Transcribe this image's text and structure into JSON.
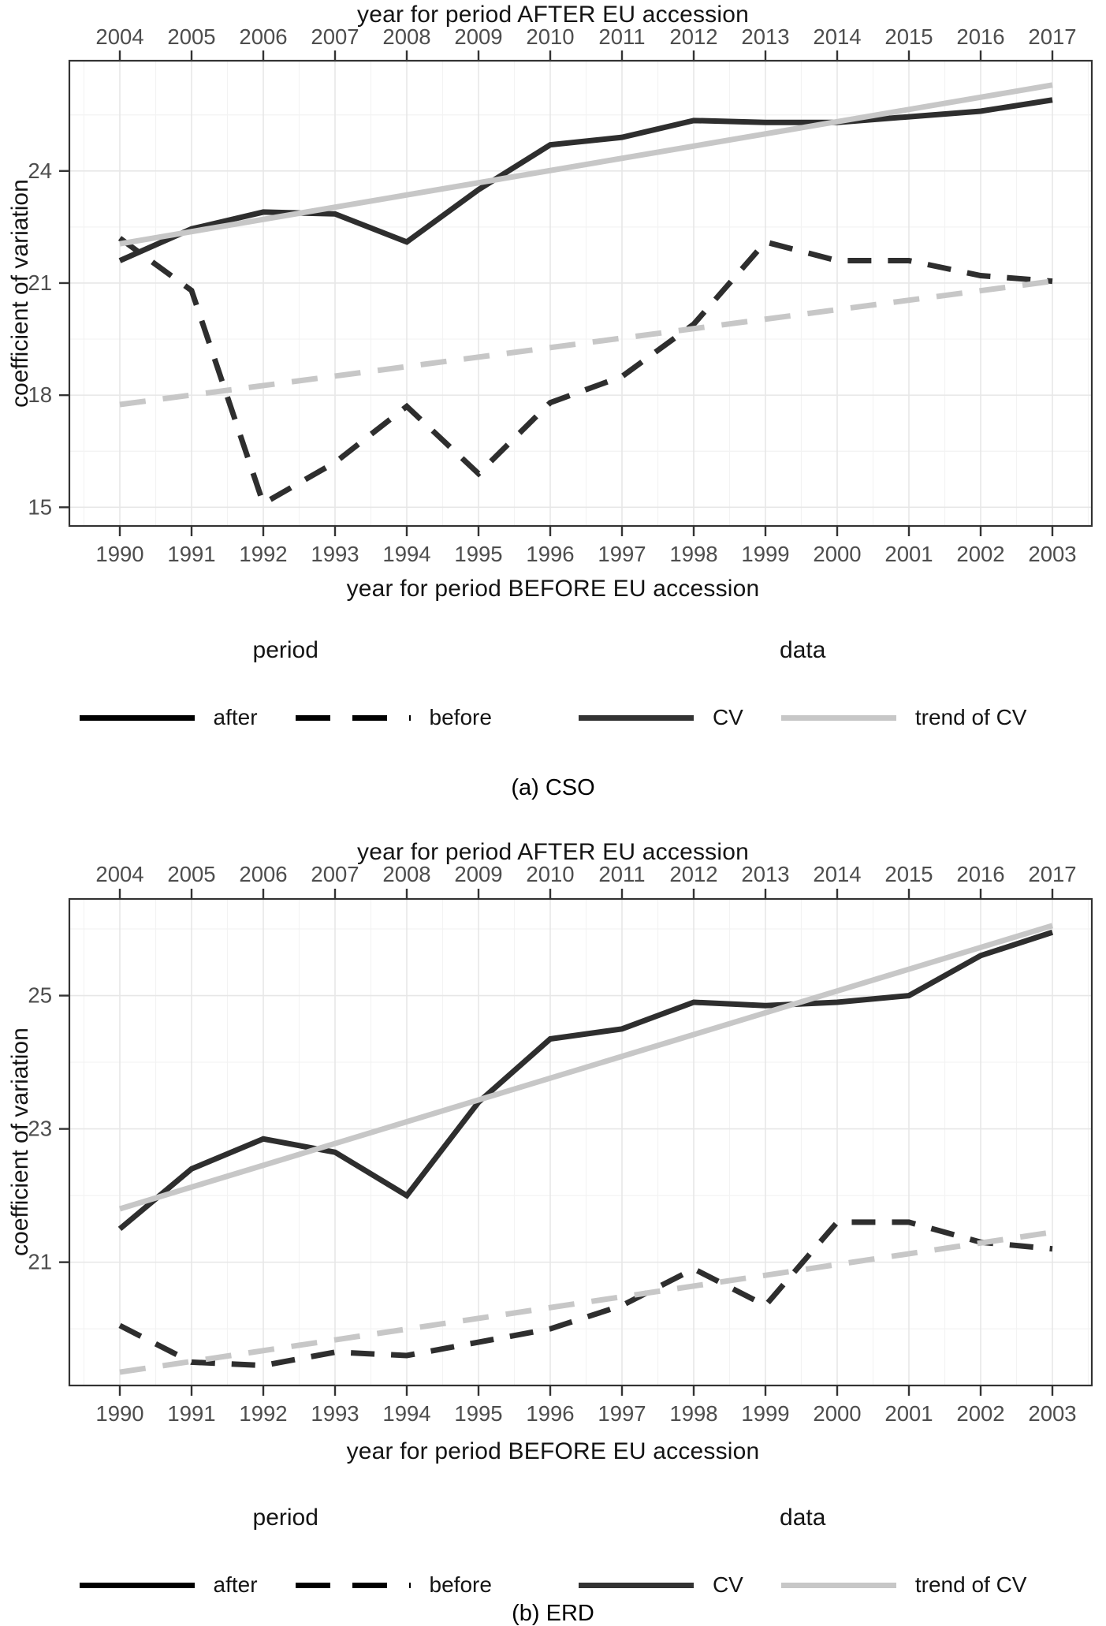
{
  "figure": {
    "type": "two-panel line chart figure",
    "description": "coefficient of variation before and after EU accession"
  },
  "colors": {
    "cv_line": "#2e2e2e",
    "trend_line": "#c7c7c7",
    "period_swatch": "#000000",
    "cv_swatch": "#333333",
    "axis_text": "#4d4d4d",
    "title_text": "#141414",
    "panel_border": "#333333",
    "grid_major": "#e7e7e7",
    "grid_minor": "#f3f3f3",
    "background": "#ffffff"
  },
  "legend": {
    "period_title": "period",
    "after_label": "after",
    "before_label": "before",
    "data_title": "data",
    "cv_label": "CV",
    "trend_label": "trend of CV"
  },
  "chart_data": [
    {
      "id": "cso",
      "type": "line",
      "caption": "(a) CSO",
      "top_axis_title": "year for period AFTER EU accession",
      "bottom_axis_title": "year for period BEFORE EU accession",
      "y_axis_title": "coefficient of variation",
      "years_after": [
        2004,
        2005,
        2006,
        2007,
        2008,
        2009,
        2010,
        2011,
        2012,
        2013,
        2014,
        2015,
        2016,
        2017
      ],
      "years_before": [
        1990,
        1991,
        1992,
        1993,
        1994,
        1995,
        1996,
        1997,
        1998,
        1999,
        2000,
        2001,
        2002,
        2003
      ],
      "y_ticks": [
        15,
        18,
        21,
        24
      ],
      "y_minor": [
        16.5,
        19.5,
        22.5,
        25.5
      ],
      "ylim": [
        14.5,
        26.95
      ],
      "series": [
        {
          "name": "CV after accession",
          "style": "solid-dark",
          "values": [
            21.6,
            22.45,
            22.9,
            22.85,
            22.1,
            23.5,
            24.7,
            24.9,
            25.35,
            25.3,
            25.3,
            25.45,
            25.6,
            25.9
          ]
        },
        {
          "name": "CV before accession",
          "style": "dashed-dark",
          "values": [
            22.2,
            20.8,
            15.1,
            16.2,
            17.7,
            15.9,
            17.8,
            18.5,
            19.9,
            22.1,
            21.6,
            21.6,
            21.2,
            21.05
          ]
        },
        {
          "name": "trend of CV after accession",
          "style": "solid-gray",
          "endpoints": [
            22.05,
            26.3
          ]
        },
        {
          "name": "trend of CV before accession",
          "style": "dashed-gray",
          "endpoints": [
            17.75,
            21.05
          ]
        }
      ]
    },
    {
      "id": "erd",
      "type": "line",
      "caption": "(b) ERD",
      "top_axis_title": "year for period AFTER EU accession",
      "bottom_axis_title": "year for period BEFORE EU accession",
      "y_axis_title": "coefficient of variation",
      "years_after": [
        2004,
        2005,
        2006,
        2007,
        2008,
        2009,
        2010,
        2011,
        2012,
        2013,
        2014,
        2015,
        2016,
        2017
      ],
      "years_before": [
        1990,
        1991,
        1992,
        1993,
        1994,
        1995,
        1996,
        1997,
        1998,
        1999,
        2000,
        2001,
        2002,
        2003
      ],
      "y_ticks": [
        21,
        23,
        25
      ],
      "y_minor": [
        20,
        22,
        24,
        26
      ],
      "ylim": [
        19.15,
        26.45
      ],
      "series": [
        {
          "name": "CV after accession",
          "style": "solid-dark",
          "values": [
            21.5,
            22.4,
            22.85,
            22.65,
            22.0,
            23.4,
            24.35,
            24.5,
            24.9,
            24.85,
            24.9,
            25.0,
            25.6,
            25.95
          ]
        },
        {
          "name": "CV before accession",
          "style": "dashed-dark",
          "values": [
            20.05,
            19.5,
            19.45,
            19.65,
            19.6,
            19.8,
            20.0,
            20.35,
            20.9,
            20.35,
            21.6,
            21.6,
            21.3,
            21.2
          ]
        },
        {
          "name": "trend of CV after accession",
          "style": "solid-gray",
          "endpoints": [
            21.8,
            26.05
          ]
        },
        {
          "name": "trend of CV before accession",
          "style": "dashed-gray",
          "endpoints": [
            19.35,
            21.45
          ]
        }
      ]
    }
  ]
}
